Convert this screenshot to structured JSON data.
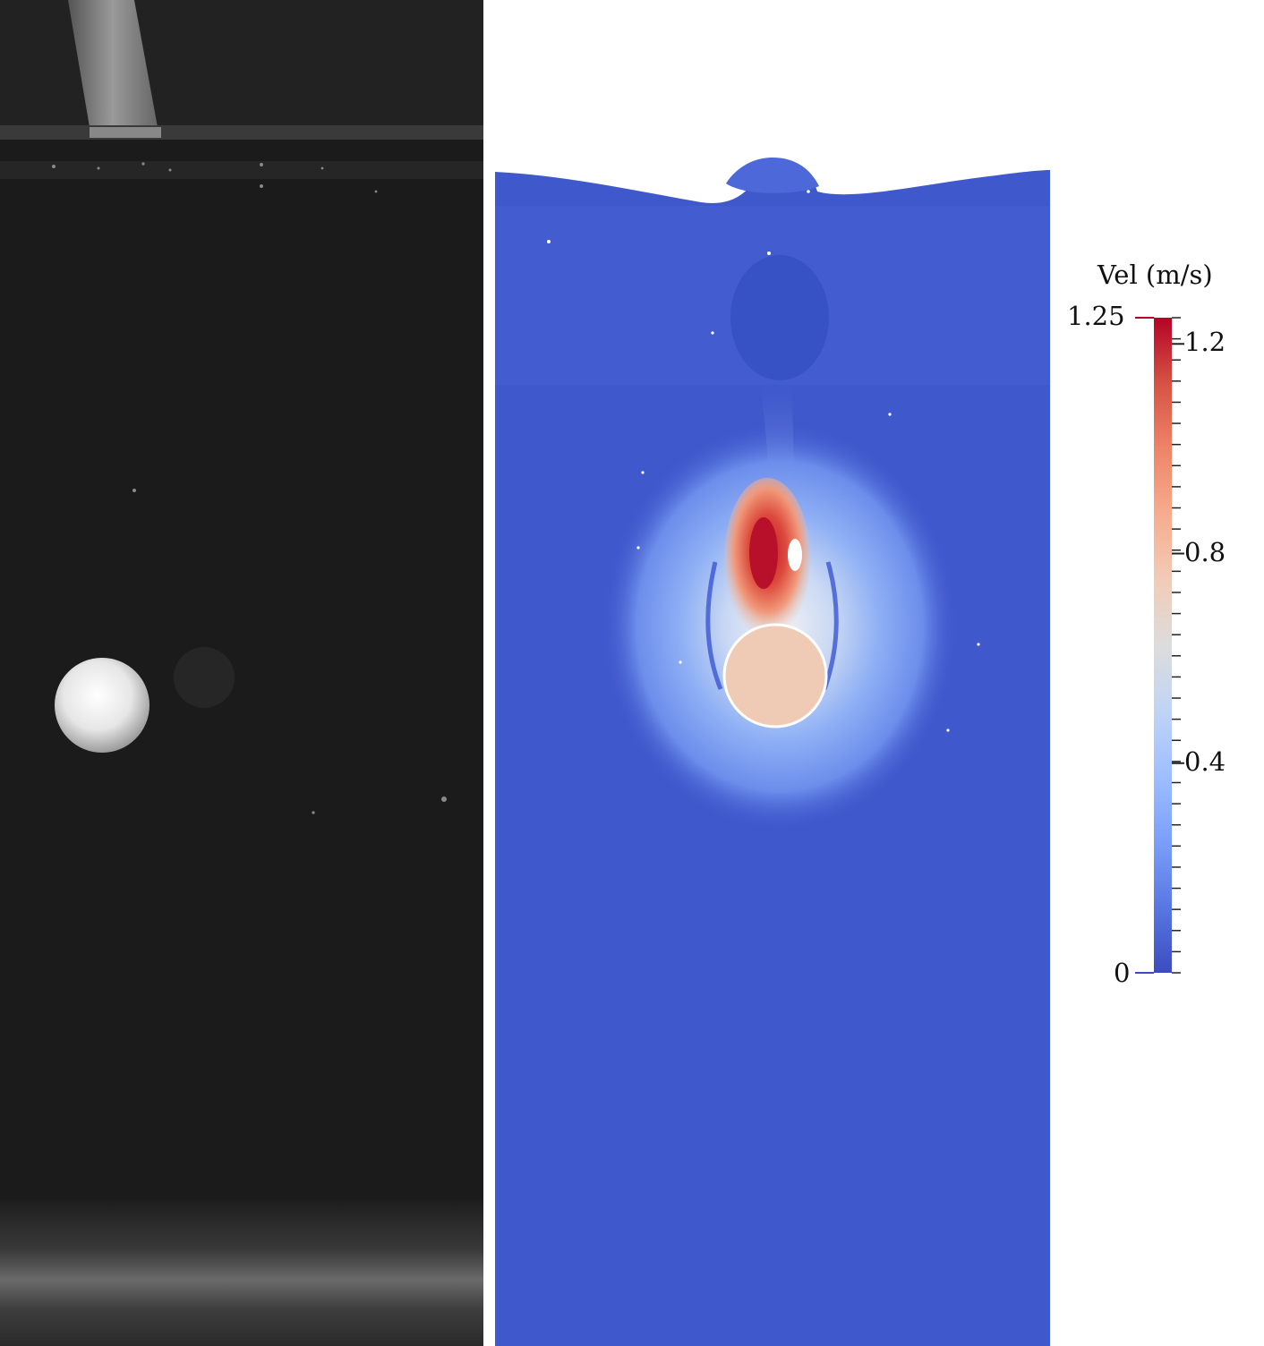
{
  "colorbar": {
    "title": "Vel (m/s)",
    "range_max_label": "1.25",
    "range_min_label": "0",
    "ticks": [
      {
        "value": 1.2,
        "label": "1.2"
      },
      {
        "value": 0.8,
        "label": "0.8"
      },
      {
        "value": 0.4,
        "label": "0.4"
      }
    ],
    "min": 0,
    "max": 1.25,
    "colormap": [
      "#3b4cc0",
      "#5977e3",
      "#7b9ff9",
      "#9ebeff",
      "#c0d4f5",
      "#dddcdc",
      "#f2cbb7",
      "#f7ac8e",
      "#ee8468",
      "#d65244",
      "#b40426"
    ]
  },
  "colors": {
    "photo_background": "#1b1b1b",
    "sphere_in_photo": "#e8e8e8",
    "sim_background": "#3f58cc",
    "sphere_in_sim": "#efcab5",
    "wake_peak": "#c4162b"
  }
}
